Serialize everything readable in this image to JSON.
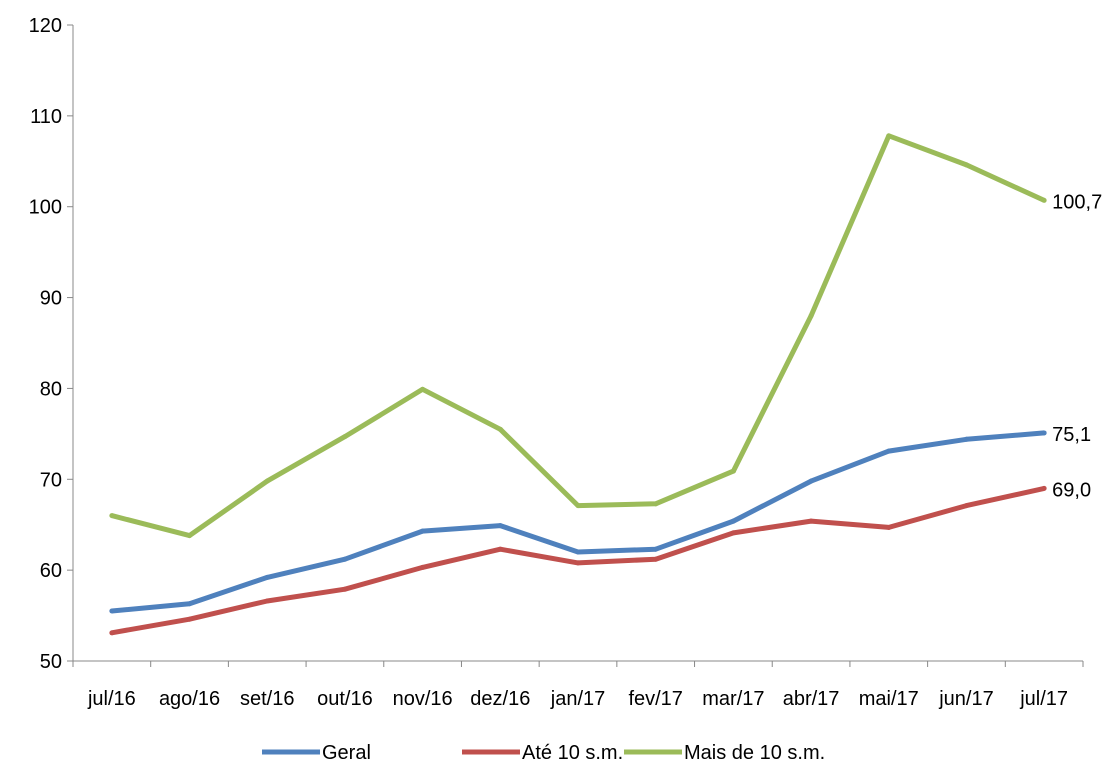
{
  "chart_data": {
    "type": "line",
    "title": "",
    "xlabel": "",
    "ylabel": "",
    "categories": [
      "jul/16",
      "ago/16",
      "set/16",
      "out/16",
      "nov/16",
      "dez/16",
      "jan/17",
      "fev/17",
      "mar/17",
      "abr/17",
      "mai/17",
      "jun/17",
      "jul/17"
    ],
    "ylim": [
      50,
      120
    ],
    "yticks": [
      "50",
      "60",
      "70",
      "80",
      "90",
      "100",
      "110",
      "120"
    ],
    "grid": false,
    "legend_position": "bottom",
    "series": [
      {
        "name": "Geral",
        "color": "#4f81bd",
        "values": [
          55.5,
          56.3,
          59.2,
          61.2,
          64.3,
          64.9,
          62.0,
          62.3,
          65.4,
          69.8,
          73.1,
          74.4,
          75.1
        ],
        "end_label": "75,1"
      },
      {
        "name": "Até 10 s.m.",
        "color": "#c0504d",
        "values": [
          53.1,
          54.6,
          56.6,
          57.9,
          60.3,
          62.3,
          60.8,
          61.2,
          64.1,
          65.4,
          64.7,
          67.1,
          69.0
        ],
        "end_label": "69,0"
      },
      {
        "name": "Mais de 10 s.m.",
        "color": "#9bbb59",
        "values": [
          66.0,
          63.8,
          69.8,
          74.7,
          79.9,
          75.5,
          67.1,
          67.3,
          70.9,
          88.0,
          107.8,
          104.6,
          100.7
        ],
        "end_label": "100,7"
      }
    ]
  }
}
